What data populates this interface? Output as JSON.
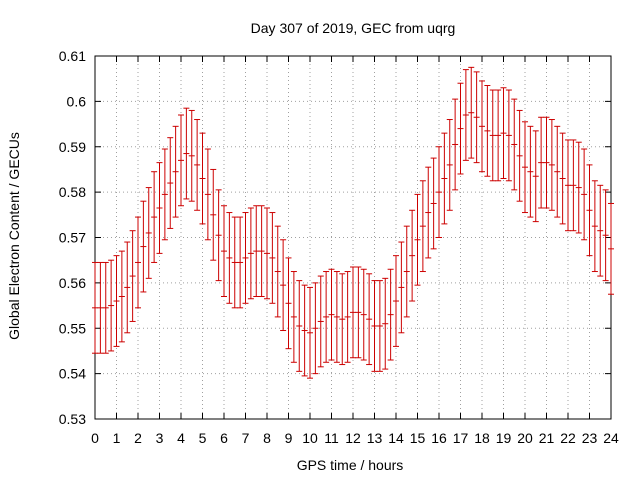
{
  "chart_data": {
    "type": "scatter",
    "title": "Day 307 of 2019, GEC from uqrg",
    "xlabel": "GPS time / hours",
    "ylabel": "Global Electron Content / GECUs",
    "xlim": [
      0,
      24
    ],
    "ylim": [
      0.53,
      0.61
    ],
    "xticks": [
      0,
      1,
      2,
      3,
      4,
      5,
      6,
      7,
      8,
      9,
      10,
      11,
      12,
      13,
      14,
      15,
      16,
      17,
      18,
      19,
      20,
      21,
      22,
      23,
      24
    ],
    "xtick_labels": [
      "0",
      "1",
      "2",
      "3",
      "4",
      "5",
      "6",
      "7",
      "8",
      "9",
      "10",
      "11",
      "12",
      "13",
      "14",
      "15",
      "16",
      "17",
      "18",
      "19",
      "20",
      "21",
      "22",
      "23",
      "24"
    ],
    "yticks": [
      0.53,
      0.54,
      0.55,
      0.56,
      0.57,
      0.58,
      0.59,
      0.6,
      0.61
    ],
    "ytick_labels": [
      "0.53",
      "0.54",
      "0.55",
      "0.56",
      "0.57",
      "0.58",
      "0.59",
      "0.6",
      "0.61"
    ],
    "grid": true,
    "series": [
      {
        "name": "GEC",
        "color": "#cc0000",
        "error": 0.01,
        "x": [
          0,
          0.25,
          0.5,
          0.75,
          1,
          1.25,
          1.5,
          1.75,
          2,
          2.25,
          2.5,
          2.75,
          3,
          3.25,
          3.5,
          3.75,
          4,
          4.25,
          4.5,
          4.75,
          5,
          5.25,
          5.5,
          5.75,
          6,
          6.25,
          6.5,
          6.75,
          7,
          7.25,
          7.5,
          7.75,
          8,
          8.25,
          8.5,
          8.75,
          9,
          9.25,
          9.5,
          9.75,
          10,
          10.25,
          10.5,
          10.75,
          11,
          11.25,
          11.5,
          11.75,
          12,
          12.25,
          12.5,
          12.75,
          13,
          13.25,
          13.5,
          13.75,
          14,
          14.25,
          14.5,
          14.75,
          15,
          15.25,
          15.5,
          15.75,
          16,
          16.25,
          16.5,
          16.75,
          17,
          17.25,
          17.5,
          17.75,
          18,
          18.25,
          18.5,
          18.75,
          19,
          19.25,
          19.5,
          19.75,
          20,
          20.25,
          20.5,
          20.75,
          21,
          21.25,
          21.5,
          21.75,
          22,
          22.25,
          22.5,
          22.75,
          23,
          23.25,
          23.5,
          23.75,
          24
        ],
        "y": [
          0.5545,
          0.5545,
          0.5545,
          0.555,
          0.556,
          0.557,
          0.559,
          0.5615,
          0.5645,
          0.568,
          0.571,
          0.5745,
          0.5765,
          0.5795,
          0.582,
          0.5845,
          0.587,
          0.5885,
          0.588,
          0.586,
          0.583,
          0.5795,
          0.575,
          0.5705,
          0.567,
          0.5655,
          0.5645,
          0.5645,
          0.5655,
          0.5665,
          0.567,
          0.567,
          0.5665,
          0.5655,
          0.5625,
          0.5595,
          0.5555,
          0.5525,
          0.5505,
          0.5495,
          0.549,
          0.55,
          0.5515,
          0.5525,
          0.553,
          0.5525,
          0.552,
          0.5525,
          0.5535,
          0.5535,
          0.553,
          0.552,
          0.5505,
          0.5505,
          0.551,
          0.553,
          0.556,
          0.559,
          0.5625,
          0.566,
          0.5695,
          0.5725,
          0.5755,
          0.5775,
          0.58,
          0.583,
          0.586,
          0.5905,
          0.594,
          0.597,
          0.5975,
          0.5965,
          0.5945,
          0.5935,
          0.5925,
          0.5925,
          0.593,
          0.5925,
          0.5905,
          0.588,
          0.5855,
          0.5845,
          0.5835,
          0.5865,
          0.5865,
          0.586,
          0.5845,
          0.583,
          0.5815,
          0.5815,
          0.581,
          0.5795,
          0.576,
          0.5725,
          0.5715,
          0.5705,
          0.5675
        ]
      }
    ]
  }
}
